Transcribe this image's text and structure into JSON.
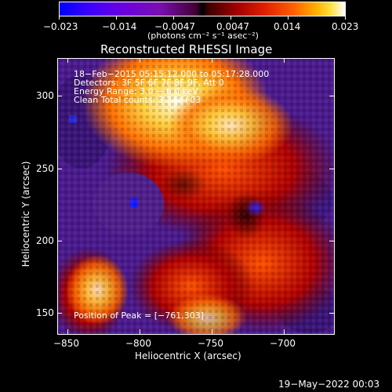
{
  "colorbar": {
    "ticks": [
      "−0.023",
      "−0.014",
      "−0.0047",
      "0.0047",
      "0.014",
      "0.023"
    ],
    "units": "(photons cm⁻² s⁻¹ asec⁻²)"
  },
  "plot": {
    "title": "Reconstructed RHESSI Image",
    "xlabel": "Heliocentric X (arcsec)",
    "ylabel": "Heliocentric Y (arcsec)",
    "xticks": [
      "−850",
      "−800",
      "−750",
      "−700"
    ],
    "yticks": [
      "300",
      "250",
      "200",
      "150"
    ],
    "info_lines": [
      "18−Feb−2015 05:15:12.000 to 05:17:28.000",
      "Detectors: 3F 5F 6F 7F 8F 9F, Att 0",
      "Energy Range: 3.0 − 6.0 keV",
      "Clean     Total counts: 3.24e+03"
    ],
    "peak_text": "Position of Peak = [−761,303]"
  },
  "footer": {
    "date": "19−May−2022 00:03"
  },
  "colors": {
    "background": "#000000",
    "foreground": "#ffffff"
  }
}
